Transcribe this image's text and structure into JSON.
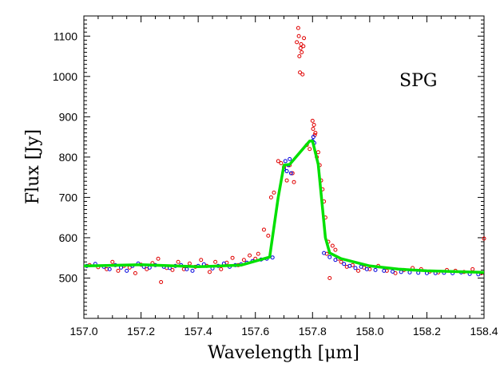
{
  "chart_data": {
    "type": "scatter",
    "title": "",
    "annotation": "SPG",
    "xlabel": "Wavelength [μm]",
    "ylabel": "Flux [Jy]",
    "xlim": [
      157.0,
      158.4
    ],
    "ylim": [
      400,
      1150
    ],
    "x_ticks": [
      157.0,
      157.2,
      157.4,
      157.6,
      157.8,
      158.0,
      158.2,
      158.4
    ],
    "x_tick_labels": [
      "157.0",
      "157.2",
      "157.4",
      "157.6",
      "157.8",
      "158.0",
      "158.2",
      "158.4"
    ],
    "y_ticks": [
      500,
      600,
      700,
      800,
      900,
      1000,
      1100
    ],
    "y_tick_labels": [
      "500",
      "600",
      "700",
      "800",
      "900",
      "1000",
      "1100"
    ],
    "colors": {
      "red": "#e00000",
      "blue": "#0000dd",
      "green": "#00e000"
    },
    "series": [
      {
        "name": "red points",
        "color": "#e00000",
        "x": [
          157.02,
          157.05,
          157.08,
          157.1,
          157.12,
          157.14,
          157.16,
          157.18,
          157.2,
          157.22,
          157.24,
          157.26,
          157.27,
          157.29,
          157.31,
          157.33,
          157.35,
          157.37,
          157.39,
          157.41,
          157.43,
          157.44,
          157.46,
          157.48,
          157.5,
          157.52,
          157.54,
          157.56,
          157.58,
          157.6,
          157.61,
          157.63,
          157.645,
          157.655,
          157.665,
          157.68,
          157.69,
          157.7,
          157.71,
          157.72,
          157.73,
          157.735,
          157.745,
          157.75,
          157.752,
          157.754,
          157.756,
          157.758,
          157.76,
          157.762,
          157.765,
          157.768,
          157.77,
          157.78,
          157.79,
          157.8,
          157.802,
          157.805,
          157.808,
          157.81,
          157.815,
          157.82,
          157.825,
          157.83,
          157.835,
          157.84,
          157.845,
          157.85,
          157.855,
          157.86,
          157.87,
          157.88,
          157.89,
          157.9,
          157.92,
          157.94,
          157.96,
          157.98,
          158.0,
          158.03,
          158.06,
          158.09,
          158.12,
          158.15,
          158.18,
          158.21,
          158.24,
          158.27,
          158.3,
          158.33,
          158.36,
          158.39,
          158.4
        ],
        "y": [
          532,
          527,
          522,
          540,
          518,
          530,
          526,
          512,
          533,
          522,
          537,
          548,
          490,
          525,
          520,
          540,
          522,
          536,
          528,
          545,
          530,
          515,
          540,
          522,
          538,
          550,
          532,
          545,
          556,
          548,
          560,
          620,
          605,
          700,
          712,
          790,
          785,
          775,
          742,
          780,
          760,
          738,
          1085,
          1120,
          1100,
          1050,
          1010,
          1070,
          1080,
          1060,
          1005,
          1075,
          1095,
          830,
          820,
          890,
          870,
          880,
          855,
          860,
          800,
          812,
          780,
          742,
          720,
          690,
          650,
          560,
          590,
          500,
          580,
          570,
          548,
          540,
          528,
          532,
          518,
          526,
          522,
          530,
          518,
          512,
          520,
          525,
          522,
          516,
          514,
          520,
          518,
          515,
          522,
          512,
          598
        ]
      },
      {
        "name": "blue points",
        "color": "#0000dd",
        "x": [
          157.01,
          157.04,
          157.07,
          157.09,
          157.11,
          157.13,
          157.15,
          157.17,
          157.19,
          157.21,
          157.23,
          157.25,
          157.28,
          157.3,
          157.32,
          157.34,
          157.36,
          157.38,
          157.4,
          157.42,
          157.45,
          157.47,
          157.49,
          157.51,
          157.53,
          157.55,
          157.57,
          157.59,
          157.62,
          157.64,
          157.66,
          157.7,
          157.705,
          157.71,
          157.715,
          157.72,
          157.725,
          157.8,
          157.803,
          157.806,
          157.84,
          157.86,
          157.88,
          157.91,
          157.93,
          157.95,
          157.97,
          157.99,
          158.02,
          158.05,
          158.08,
          158.11,
          158.14,
          158.17,
          158.2,
          158.23,
          158.26,
          158.29,
          158.32,
          158.35,
          158.38
        ],
        "y": [
          530,
          535,
          528,
          522,
          532,
          526,
          518,
          530,
          536,
          528,
          526,
          532,
          528,
          525,
          530,
          532,
          522,
          518,
          530,
          534,
          524,
          530,
          536,
          528,
          532,
          534,
          538,
          542,
          546,
          548,
          551,
          770,
          790,
          765,
          780,
          795,
          760,
          840,
          850,
          835,
          562,
          552,
          545,
          535,
          530,
          525,
          528,
          522,
          520,
          518,
          516,
          515,
          514,
          513,
          512,
          512,
          513,
          512,
          514,
          510,
          509
        ]
      },
      {
        "name": "green fit",
        "color": "#00e000",
        "x": [
          157.0,
          157.2,
          157.4,
          157.55,
          157.65,
          157.68,
          157.7,
          157.72,
          157.79,
          157.8,
          157.82,
          157.845,
          157.86,
          157.9,
          158.0,
          158.1,
          158.2,
          158.3,
          158.4
        ],
        "y": [
          530,
          533,
          528,
          532,
          552,
          700,
          780,
          782,
          840,
          840,
          782,
          600,
          562,
          548,
          530,
          522,
          518,
          516,
          514
        ]
      }
    ]
  }
}
